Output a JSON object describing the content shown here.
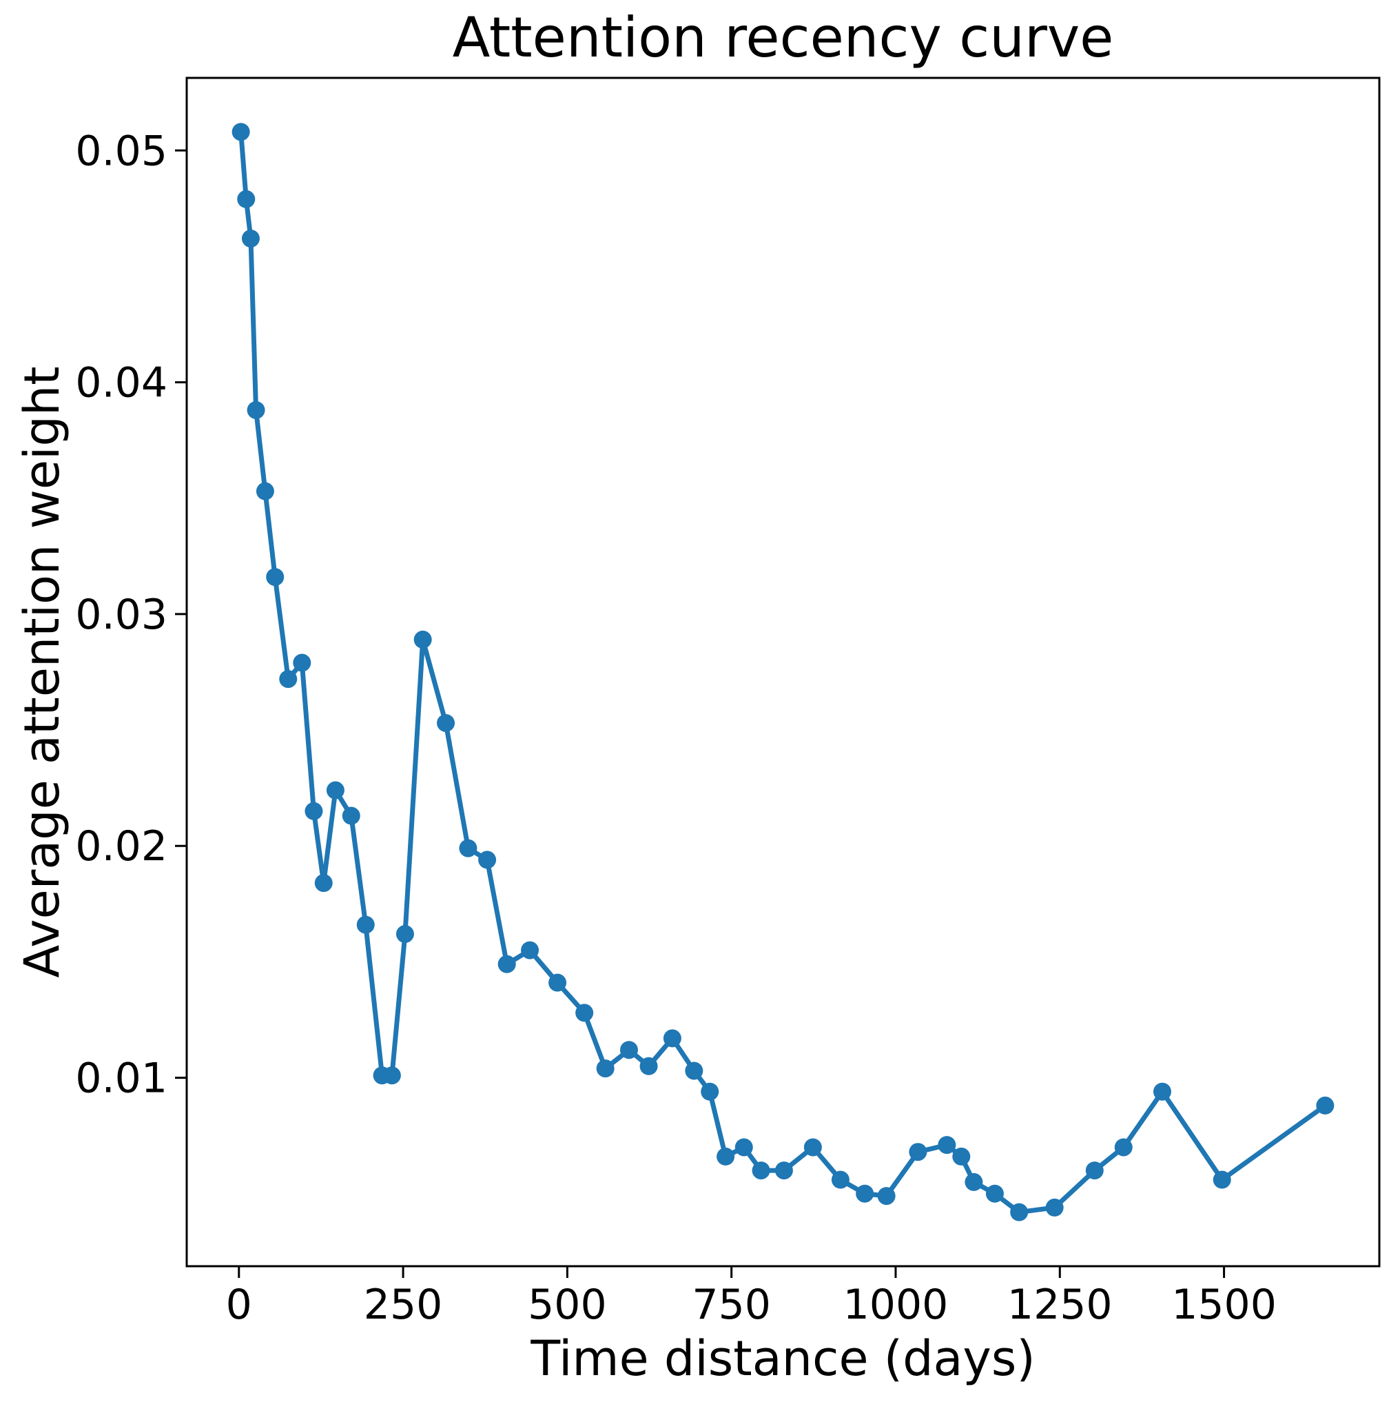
{
  "figure": {
    "background": "#ffffff",
    "text_color": "#000000"
  },
  "chart_data": {
    "type": "line",
    "title": "Attention recency curve",
    "xlabel": "Time distance (days)",
    "ylabel": "Average attention weight",
    "grid": false,
    "legend_position": "none",
    "xlim": [
      -79.5,
      1736.5
    ],
    "ylim": [
      0.00187,
      0.05313
    ],
    "xticks": [
      0,
      250,
      500,
      750,
      1000,
      1250,
      1500
    ],
    "xtick_labels": [
      "0",
      "250",
      "500",
      "750",
      "1000",
      "1250",
      "1500"
    ],
    "yticks": [
      0.01,
      0.02,
      0.03,
      0.04,
      0.05
    ],
    "ytick_labels": [
      "0.01",
      "0.02",
      "0.03",
      "0.04",
      "0.05"
    ],
    "series": [
      {
        "name": "average-attention-weight",
        "color": "#1f77b4",
        "marker": "circle",
        "line_width": 7,
        "marker_radius": 13,
        "x": [
          3,
          11,
          18,
          26,
          40,
          55,
          75,
          96,
          114,
          129,
          147,
          171,
          193,
          218,
          233,
          253,
          280,
          315,
          349,
          378,
          408,
          443,
          485,
          526,
          558,
          594,
          624,
          660,
          693,
          717,
          741,
          769,
          795,
          830,
          874,
          916,
          953,
          986,
          1034,
          1078,
          1100,
          1119,
          1151,
          1188,
          1242,
          1303,
          1347,
          1406,
          1497,
          1654
        ],
        "y": [
          0.0508,
          0.0479,
          0.0462,
          0.0388,
          0.0353,
          0.0316,
          0.0272,
          0.0279,
          0.0215,
          0.0184,
          0.0224,
          0.0213,
          0.0166,
          0.0101,
          0.0101,
          0.0162,
          0.0289,
          0.0253,
          0.0199,
          0.0194,
          0.0149,
          0.0155,
          0.0141,
          0.0128,
          0.0104,
          0.0112,
          0.0105,
          0.0117,
          0.0103,
          0.0094,
          0.0066,
          0.007,
          0.006,
          0.006,
          0.007,
          0.0056,
          0.005,
          0.0049,
          0.0068,
          0.0071,
          0.0066,
          0.0055,
          0.005,
          0.0042,
          0.0044,
          0.006,
          0.007,
          0.0094,
          0.0056,
          0.0088
        ]
      }
    ]
  }
}
